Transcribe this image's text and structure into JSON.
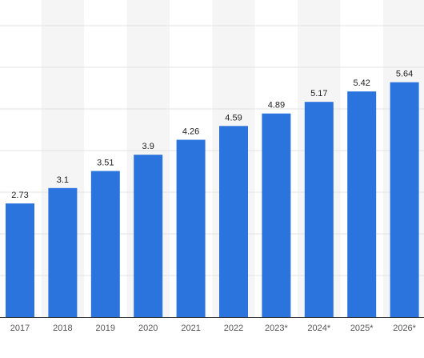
{
  "chart_data": {
    "type": "bar",
    "categories": [
      "2017",
      "2018",
      "2019",
      "2020",
      "2021",
      "2022",
      "2023*",
      "2024*",
      "2025*",
      "2026*"
    ],
    "values": [
      2.73,
      3.1,
      3.51,
      3.9,
      4.26,
      4.59,
      4.89,
      5.17,
      5.42,
      5.64
    ],
    "value_labels": [
      "2.73",
      "3.1",
      "3.51",
      "3.9",
      "4.26",
      "4.59",
      "4.89",
      "5.17",
      "5.42",
      "5.64"
    ],
    "ylim": [
      0,
      7
    ],
    "y_gridlines": [
      0,
      1,
      2,
      3,
      4,
      5,
      6,
      7
    ],
    "grid": true,
    "alternating_column_shading": true,
    "colors": {
      "bar": "#2b74de",
      "gridline": "#e3e3e3",
      "column_shade": "#f5f5f5",
      "axis": "#333333",
      "label": "#222222",
      "tick_label": "#555555"
    }
  }
}
